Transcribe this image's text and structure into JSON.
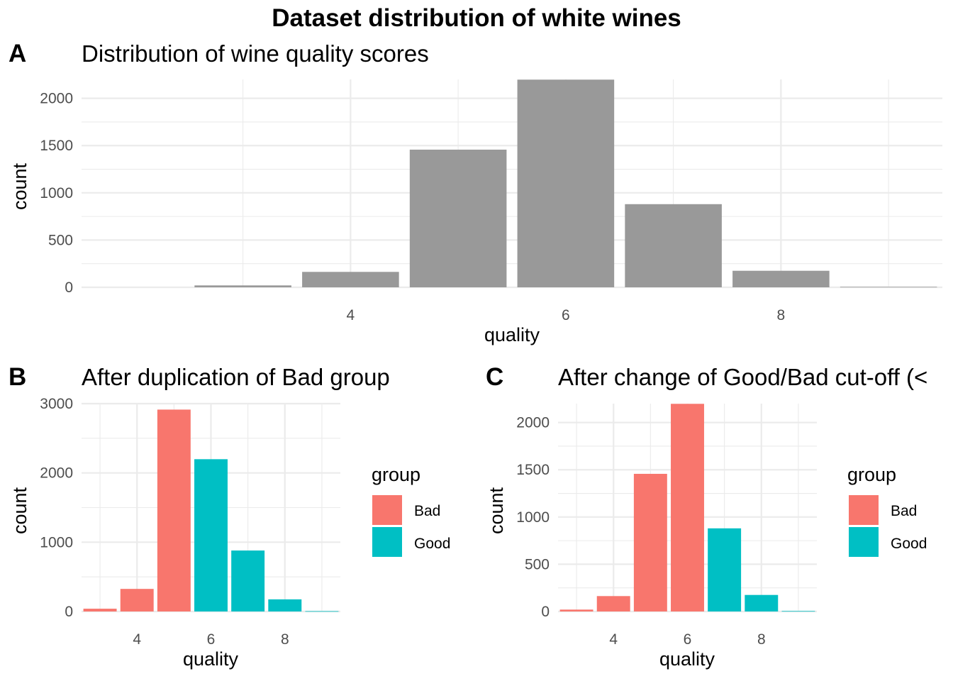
{
  "figure": {
    "title": "Dataset distribution of white wines"
  },
  "colors": {
    "grey_bar": "#999999",
    "bad": "#F8766D",
    "good": "#00BFC4"
  },
  "chart_data": [
    {
      "tag": "A",
      "type": "bar",
      "title": "Distribution of wine quality scores",
      "xlabel": "quality",
      "ylabel": "count",
      "x": [
        3,
        4,
        5,
        6,
        7,
        8,
        9
      ],
      "values": [
        20,
        163,
        1457,
        2198,
        880,
        175,
        5
      ],
      "xticks": [
        4,
        6,
        8
      ],
      "yticks": [
        0,
        500,
        1000,
        1500,
        2000
      ],
      "xlim": [
        1.5,
        9.5
      ],
      "ylim": [
        0,
        2200
      ],
      "legend": null,
      "grid": true
    },
    {
      "tag": "B",
      "type": "bar",
      "title": "After duplication of Bad group",
      "xlabel": "quality",
      "ylabel": "count",
      "x": [
        3,
        4,
        5,
        6,
        7,
        8,
        9
      ],
      "values": [
        40,
        326,
        2914,
        2198,
        880,
        175,
        5
      ],
      "groups": [
        "Bad",
        "Bad",
        "Bad",
        "Good",
        "Good",
        "Good",
        "Good"
      ],
      "xticks": [
        4,
        6,
        8
      ],
      "yticks": [
        0,
        1000,
        2000,
        3000
      ],
      "xlim": [
        2.5,
        9.5
      ],
      "ylim": [
        0,
        3000
      ],
      "legend": {
        "title": "group",
        "entries": [
          "Bad",
          "Good"
        ],
        "position": "right"
      },
      "grid": true
    },
    {
      "tag": "C",
      "type": "bar",
      "title": "After change of Good/Bad cut-off (<",
      "xlabel": "quality",
      "ylabel": "count",
      "x": [
        3,
        4,
        5,
        6,
        7,
        8,
        9
      ],
      "values": [
        20,
        163,
        1457,
        2198,
        880,
        175,
        5
      ],
      "groups": [
        "Bad",
        "Bad",
        "Bad",
        "Bad",
        "Good",
        "Good",
        "Good"
      ],
      "xticks": [
        4,
        6,
        8
      ],
      "yticks": [
        0,
        500,
        1000,
        1500,
        2000
      ],
      "xlim": [
        2.5,
        9.5
      ],
      "ylim": [
        0,
        2200
      ],
      "legend": {
        "title": "group",
        "entries": [
          "Bad",
          "Good"
        ],
        "position": "right"
      },
      "grid": true
    }
  ]
}
